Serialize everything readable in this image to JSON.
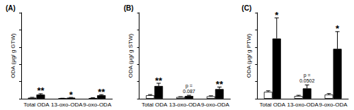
{
  "chart_data": [
    {
      "type": "bar",
      "title": "(A)",
      "y_label": "ODA (μg/ g GTW)",
      "categories": [
        "Total ODA",
        "13-oxo-ODA",
        "9-oxo-ODA"
      ],
      "series": [
        {
          "color": "#ffffff",
          "values": [
            0.03,
            0.01,
            0.02
          ],
          "errors": [
            0.01,
            0.005,
            0.008
          ]
        },
        {
          "color": "#000000",
          "values": [
            0.12,
            0.03,
            0.1
          ],
          "errors": [
            0.025,
            0.008,
            0.02
          ]
        }
      ],
      "ylim": [
        0,
        2.5
      ],
      "yticks": [
        0,
        0.5,
        1,
        1.5,
        2,
        2.5
      ],
      "grid": false,
      "tick_labels": "x",
      "annotations": [
        {
          "category": "Total ODA",
          "text": "**"
        },
        {
          "category": "13-oxo-ODA",
          "text": "*"
        },
        {
          "category": "9-oxo-ODA",
          "text": "**"
        }
      ]
    },
    {
      "type": "bar",
      "title": "(B)",
      "y_label": "ODA (μg/ g STW)",
      "categories": [
        "Total ODA",
        "13-oxo-ODA",
        "9-oxo-ODA"
      ],
      "series": [
        {
          "color": "#ffffff",
          "values": [
            0.1,
            0.05,
            0.07
          ],
          "errors": [
            0.02,
            0.01,
            0.015
          ]
        },
        {
          "color": "#000000",
          "values": [
            0.37,
            0.08,
            0.28
          ],
          "errors": [
            0.08,
            0.02,
            0.06
          ]
        }
      ],
      "ylim": [
        0,
        2.5
      ],
      "yticks": [
        0,
        0.5,
        1,
        1.5,
        2,
        2.5
      ],
      "grid": false,
      "tick_labels": "x",
      "annotations": [
        {
          "category": "Total ODA",
          "text": "**"
        },
        {
          "category": "13-oxo-ODA",
          "text": "p =\n0.087"
        },
        {
          "category": "9-oxo-ODA",
          "text": "**"
        }
      ]
    },
    {
      "type": "bar",
      "title": "(C)",
      "y_label": "ODA (μg/ g PTW)",
      "categories": [
        "Total ODA",
        "13-oxo-ODA",
        "9-oxo-ODA"
      ],
      "series": [
        {
          "color": "#ffffff",
          "values": [
            0.2,
            0.08,
            0.12
          ],
          "errors": [
            0.03,
            0.02,
            0.03
          ]
        },
        {
          "color": "#000000",
          "values": [
            1.75,
            0.3,
            1.45
          ],
          "errors": [
            0.6,
            0.1,
            0.5
          ]
        }
      ],
      "ylim": [
        0,
        2.5
      ],
      "yticks": [
        0,
        0.5,
        1,
        1.5,
        2,
        2.5
      ],
      "grid": false,
      "tick_labels": "x",
      "annotations": [
        {
          "category": "Total ODA",
          "text": "*"
        },
        {
          "category": "13-oxo-ODA",
          "text": "p =\n0.0502"
        },
        {
          "category": "9-oxo-ODA",
          "text": "*"
        }
      ]
    }
  ]
}
